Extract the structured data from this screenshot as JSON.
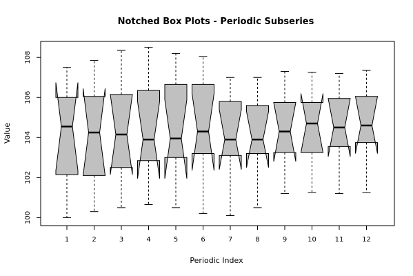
{
  "chart_data": {
    "type": "box",
    "variant": "notched",
    "title": "Notched Box Plots - Periodic Subseries",
    "xlabel": "Periodic Index",
    "ylabel": "Value",
    "ylim": [
      99.6,
      108.8
    ],
    "yticks": [
      100,
      102,
      104,
      106,
      108
    ],
    "box_fill": "#c0c0c0",
    "categories": [
      "1",
      "2",
      "3",
      "4",
      "5",
      "6",
      "7",
      "8",
      "9",
      "10",
      "11",
      "12"
    ],
    "boxes": [
      {
        "min": 100.0,
        "q1": 102.15,
        "median": 104.55,
        "q3": 106.0,
        "max": 107.5,
        "notch_low": 102.35,
        "notch_high": 106.75
      },
      {
        "min": 100.3,
        "q1": 102.1,
        "median": 104.25,
        "q3": 106.05,
        "max": 107.85,
        "notch_low": 102.1,
        "notch_high": 106.45
      },
      {
        "min": 100.5,
        "q1": 102.5,
        "median": 104.15,
        "q3": 106.15,
        "max": 108.35,
        "notch_low": 102.15,
        "notch_high": 106.15
      },
      {
        "min": 100.65,
        "q1": 102.85,
        "median": 103.9,
        "q3": 106.35,
        "max": 108.5,
        "notch_low": 101.95,
        "notch_high": 105.8
      },
      {
        "min": 100.5,
        "q1": 103.0,
        "median": 103.95,
        "q3": 106.65,
        "max": 108.2,
        "notch_low": 101.95,
        "notch_high": 105.9
      },
      {
        "min": 100.2,
        "q1": 103.2,
        "median": 104.3,
        "q3": 106.65,
        "max": 108.05,
        "notch_low": 102.35,
        "notch_high": 106.2
      },
      {
        "min": 100.1,
        "q1": 103.1,
        "median": 103.9,
        "q3": 105.8,
        "max": 107.0,
        "notch_low": 102.4,
        "notch_high": 105.4
      },
      {
        "min": 100.5,
        "q1": 103.2,
        "median": 103.9,
        "q3": 105.6,
        "max": 107.0,
        "notch_low": 102.5,
        "notch_high": 105.3
      },
      {
        "min": 101.2,
        "q1": 103.25,
        "median": 104.3,
        "q3": 105.75,
        "max": 107.3,
        "notch_low": 102.8,
        "notch_high": 105.75
      },
      {
        "min": 101.25,
        "q1": 103.25,
        "median": 104.7,
        "q3": 105.75,
        "max": 107.25,
        "notch_low": 103.25,
        "notch_high": 106.2
      },
      {
        "min": 101.2,
        "q1": 103.55,
        "median": 104.5,
        "q3": 105.95,
        "max": 107.2,
        "notch_low": 103.05,
        "notch_high": 105.95
      },
      {
        "min": 101.25,
        "q1": 103.75,
        "median": 104.6,
        "q3": 106.05,
        "max": 107.35,
        "notch_low": 103.2,
        "notch_high": 106.05
      }
    ]
  }
}
